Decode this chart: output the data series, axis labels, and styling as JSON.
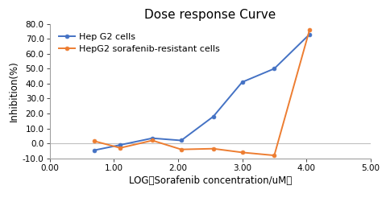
{
  "title": "Dose response Curve",
  "xlabel": "LOG（Sorafenib concentration/uM）",
  "ylabel": "Inhibition(%)",
  "xlim": [
    0.0,
    5.0
  ],
  "ylim": [
    -10.0,
    80.0
  ],
  "xticks": [
    0.0,
    1.0,
    2.0,
    3.0,
    4.0,
    5.0
  ],
  "yticks": [
    -10.0,
    0.0,
    10.0,
    20.0,
    30.0,
    40.0,
    50.0,
    60.0,
    70.0,
    80.0
  ],
  "series": [
    {
      "label": "Hep G2 cells",
      "color": "#4472C4",
      "marker": "o",
      "x": [
        0.7,
        1.1,
        1.6,
        2.05,
        2.55,
        3.0,
        3.5,
        4.05
      ],
      "y": [
        -4.5,
        -1.0,
        3.5,
        2.0,
        18.0,
        41.0,
        50.0,
        73.0
      ]
    },
    {
      "label": "HepG2 sorafenib-resistant cells",
      "color": "#ED7D31",
      "marker": "o",
      "x": [
        0.7,
        1.1,
        1.6,
        2.05,
        2.55,
        3.0,
        3.5,
        4.05
      ],
      "y": [
        1.5,
        -3.0,
        2.0,
        -4.0,
        -3.5,
        -6.0,
        -8.0,
        76.0
      ]
    }
  ],
  "hline_y": 0.0,
  "hline_color": "#C0C0C0",
  "background_color": "#FFFFFF",
  "title_fontsize": 11,
  "axis_label_fontsize": 8.5,
  "tick_fontsize": 7.5,
  "legend_fontsize": 8
}
